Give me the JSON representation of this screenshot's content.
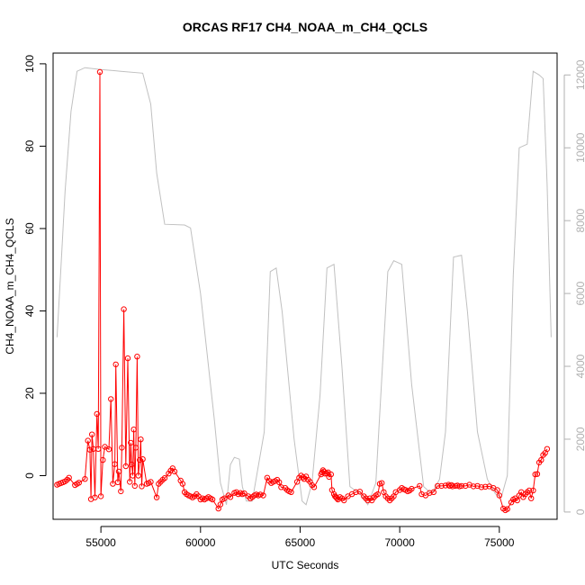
{
  "chart_data": {
    "type": "line",
    "title": "ORCAS RF17 CH4_NOAA_m_CH4_QCLS",
    "xlabel": "UTC Seconds",
    "ylabel": "CH4_NOAA_m_CH4_QCLS",
    "xlim": [
      52600,
      77900
    ],
    "ylim": [
      -10.6,
      102.6
    ],
    "ylim_right": [
      -200,
      12600
    ],
    "x_ticks": [
      55000,
      60000,
      65000,
      70000,
      75000
    ],
    "y_ticks": [
      0,
      20,
      40,
      60,
      80,
      100
    ],
    "y_ticks_right": [
      0,
      2000,
      4000,
      6000,
      8000,
      10000,
      12000
    ],
    "colors": {
      "primary": "#ff0000",
      "secondary": "#c0c0c0",
      "axis": "#000000",
      "right_axis": "#b0b0b0"
    },
    "grid": false,
    "series": [
      {
        "axis": "left",
        "style": "line-with-circles",
        "points": [
          [
            52800,
            -2.2
          ],
          [
            52900,
            -2.0
          ],
          [
            53000,
            -1.8
          ],
          [
            53100,
            -1.6
          ],
          [
            53200,
            -1.4
          ],
          [
            53300,
            -1.0
          ],
          [
            53400,
            -0.5
          ],
          [
            53700,
            -2.3
          ],
          [
            53800,
            -2.0
          ],
          [
            53900,
            -1.7
          ],
          [
            54200,
            -0.8
          ],
          [
            54350,
            8.5
          ],
          [
            54450,
            6.3
          ],
          [
            54500,
            -5.7
          ],
          [
            54550,
            10.0
          ],
          [
            54620,
            6.5
          ],
          [
            54700,
            -5.3
          ],
          [
            54800,
            15.0
          ],
          [
            54870,
            6.5
          ],
          [
            54950,
            98.0
          ],
          [
            55000,
            -5.0
          ],
          [
            55100,
            3.8
          ],
          [
            55200,
            7.0
          ],
          [
            55400,
            6.4
          ],
          [
            55500,
            18.6
          ],
          [
            55600,
            -2.0
          ],
          [
            55700,
            2.8
          ],
          [
            55750,
            27.0
          ],
          [
            55850,
            -1.6
          ],
          [
            55900,
            1.0
          ],
          [
            56000,
            -3.8
          ],
          [
            56050,
            6.8
          ],
          [
            56150,
            40.4
          ],
          [
            56250,
            2.3
          ],
          [
            56350,
            28.5
          ],
          [
            56450,
            -1.5
          ],
          [
            56500,
            8.0
          ],
          [
            56550,
            2.7
          ],
          [
            56600,
            0.0
          ],
          [
            56650,
            11.2
          ],
          [
            56700,
            -2.5
          ],
          [
            56750,
            6.8
          ],
          [
            56820,
            28.9
          ],
          [
            56880,
            0.0
          ],
          [
            56950,
            3.8
          ],
          [
            57000,
            8.8
          ],
          [
            57050,
            -2.6
          ],
          [
            57100,
            4.0
          ],
          [
            57300,
            -2.0
          ],
          [
            57400,
            -1.8
          ],
          [
            57500,
            -1.5
          ],
          [
            57800,
            -5.3
          ],
          [
            57900,
            -2.0
          ],
          [
            58000,
            -1.5
          ],
          [
            58100,
            -1.0
          ],
          [
            58200,
            -0.6
          ],
          [
            58400,
            0.5
          ],
          [
            58500,
            1.2
          ],
          [
            58600,
            1.8
          ],
          [
            58700,
            1.0
          ],
          [
            59000,
            -1.2
          ],
          [
            59100,
            -2.0
          ],
          [
            59200,
            -4.0
          ],
          [
            59300,
            -4.5
          ],
          [
            59400,
            -4.8
          ],
          [
            59500,
            -5.0
          ],
          [
            59600,
            -5.3
          ],
          [
            59700,
            -5.0
          ],
          [
            59800,
            -4.5
          ],
          [
            59900,
            -5.0
          ],
          [
            60000,
            -5.8
          ],
          [
            60100,
            -5.5
          ],
          [
            60200,
            -5.8
          ],
          [
            60300,
            -5.5
          ],
          [
            60400,
            -5.2
          ],
          [
            60500,
            -5.5
          ],
          [
            60600,
            -5.8
          ],
          [
            60900,
            -8.0
          ],
          [
            61000,
            -7.0
          ],
          [
            61100,
            -5.8
          ],
          [
            61200,
            -5.5
          ],
          [
            61400,
            -4.8
          ],
          [
            61500,
            -5.2
          ],
          [
            61700,
            -4.2
          ],
          [
            61800,
            -4.0
          ],
          [
            61900,
            -4.5
          ],
          [
            62000,
            -4.2
          ],
          [
            62100,
            -4.5
          ],
          [
            62200,
            -4.3
          ],
          [
            62400,
            -5.0
          ],
          [
            62500,
            -5.5
          ],
          [
            62600,
            -5.2
          ],
          [
            62700,
            -4.8
          ],
          [
            62800,
            -4.6
          ],
          [
            62900,
            -4.8
          ],
          [
            63000,
            -4.6
          ],
          [
            63150,
            -4.8
          ],
          [
            63350,
            -0.5
          ],
          [
            63450,
            -1.3
          ],
          [
            63550,
            -1.8
          ],
          [
            63650,
            -1.5
          ],
          [
            63750,
            -1.3
          ],
          [
            63850,
            -1.0
          ],
          [
            63950,
            -1.6
          ],
          [
            64050,
            -2.8
          ],
          [
            64250,
            -3.0
          ],
          [
            64350,
            -3.5
          ],
          [
            64450,
            -3.8
          ],
          [
            64550,
            -4.0
          ],
          [
            64850,
            -1.5
          ],
          [
            64950,
            -0.5
          ],
          [
            65050,
            0.0
          ],
          [
            65150,
            -0.4
          ],
          [
            65200,
            -0.8
          ],
          [
            65300,
            -0.2
          ],
          [
            65400,
            -1.0
          ],
          [
            65500,
            -1.5
          ],
          [
            65600,
            -2.3
          ],
          [
            65700,
            -2.8
          ],
          [
            66050,
            0.3
          ],
          [
            66100,
            0.8
          ],
          [
            66150,
            1.3
          ],
          [
            66200,
            1.0
          ],
          [
            66250,
            0.5
          ],
          [
            66350,
            0.5
          ],
          [
            66400,
            0.8
          ],
          [
            66450,
            -0.3
          ],
          [
            66550,
            0.3
          ],
          [
            66600,
            -3.5
          ],
          [
            66700,
            -4.5
          ],
          [
            66750,
            -5.0
          ],
          [
            66800,
            -5.2
          ],
          [
            66850,
            -5.5
          ],
          [
            66900,
            -5.8
          ],
          [
            67000,
            -5.2
          ],
          [
            67100,
            -5.5
          ],
          [
            67200,
            -6.0
          ],
          [
            67400,
            -5.0
          ],
          [
            67600,
            -4.5
          ],
          [
            67800,
            -4.0
          ],
          [
            68000,
            -3.9
          ],
          [
            68200,
            -5.0
          ],
          [
            68300,
            -5.5
          ],
          [
            68400,
            -6.0
          ],
          [
            68500,
            -5.5
          ],
          [
            68600,
            -6.0
          ],
          [
            68700,
            -5.3
          ],
          [
            68800,
            -4.8
          ],
          [
            68900,
            -4.5
          ],
          [
            69000,
            -2.0
          ],
          [
            69100,
            -1.8
          ],
          [
            69200,
            -4.0
          ],
          [
            69300,
            -5.0
          ],
          [
            69400,
            -5.5
          ],
          [
            69500,
            -6.0
          ],
          [
            69600,
            -5.5
          ],
          [
            69700,
            -5.0
          ],
          [
            69800,
            -4.0
          ],
          [
            70000,
            -3.5
          ],
          [
            70100,
            -3.0
          ],
          [
            70200,
            -3.3
          ],
          [
            70300,
            -3.5
          ],
          [
            70400,
            -3.8
          ],
          [
            70500,
            -3.6
          ],
          [
            70600,
            -3.2
          ],
          [
            71000,
            -2.5
          ],
          [
            71100,
            -4.5
          ],
          [
            71300,
            -4.8
          ],
          [
            71500,
            -4.2
          ],
          [
            71700,
            -4.0
          ],
          [
            71900,
            -2.5
          ],
          [
            72100,
            -2.5
          ],
          [
            72300,
            -2.4
          ],
          [
            72450,
            -2.2
          ],
          [
            72500,
            -2.5
          ],
          [
            72600,
            -2.3
          ],
          [
            72650,
            -2.6
          ],
          [
            72800,
            -2.5
          ],
          [
            72900,
            -2.4
          ],
          [
            73000,
            -2.6
          ],
          [
            73100,
            -2.5
          ],
          [
            73300,
            -2.5
          ],
          [
            73500,
            -2.2
          ],
          [
            73700,
            -2.6
          ],
          [
            73900,
            -2.5
          ],
          [
            74100,
            -2.8
          ],
          [
            74300,
            -2.7
          ],
          [
            74500,
            -2.6
          ],
          [
            74700,
            -3.0
          ],
          [
            74900,
            -3.5
          ],
          [
            75000,
            -4.8
          ],
          [
            75200,
            -8.0
          ],
          [
            75300,
            -8.4
          ],
          [
            75400,
            -8.1
          ],
          [
            75600,
            -6.5
          ],
          [
            75700,
            -5.8
          ],
          [
            75800,
            -5.5
          ],
          [
            75900,
            -6.0
          ],
          [
            76000,
            -4.8
          ],
          [
            76100,
            -4.0
          ],
          [
            76200,
            -5.2
          ],
          [
            76300,
            -4.5
          ],
          [
            76400,
            -4.0
          ],
          [
            76500,
            -3.6
          ],
          [
            76600,
            -5.5
          ],
          [
            76700,
            -3.6
          ],
          [
            76800,
            0.3
          ],
          [
            76900,
            0.4
          ],
          [
            77000,
            3.2
          ],
          [
            77100,
            3.8
          ],
          [
            77200,
            5.0
          ],
          [
            77300,
            5.5
          ],
          [
            77400,
            6.5
          ]
        ]
      },
      {
        "axis": "right",
        "style": "line",
        "points": [
          [
            52800,
            4800
          ],
          [
            53000,
            6800
          ],
          [
            53200,
            8800
          ],
          [
            53500,
            11000
          ],
          [
            53800,
            12100
          ],
          [
            54200,
            12200
          ],
          [
            55000,
            12150
          ],
          [
            56000,
            12100
          ],
          [
            57100,
            12050
          ],
          [
            57500,
            11200
          ],
          [
            57800,
            9300
          ],
          [
            58200,
            7900
          ],
          [
            59200,
            7880
          ],
          [
            59500,
            7800
          ],
          [
            60000,
            6000
          ],
          [
            60700,
            2500
          ],
          [
            61000,
            800
          ],
          [
            61300,
            200
          ],
          [
            61500,
            1300
          ],
          [
            61700,
            1500
          ],
          [
            61950,
            1450
          ],
          [
            62100,
            700
          ],
          [
            62300,
            300
          ],
          [
            62600,
            300
          ],
          [
            63200,
            2200
          ],
          [
            63500,
            6600
          ],
          [
            63800,
            6700
          ],
          [
            64100,
            5500
          ],
          [
            64700,
            2000
          ],
          [
            65100,
            300
          ],
          [
            65300,
            200
          ],
          [
            65600,
            800
          ],
          [
            66000,
            3200
          ],
          [
            66350,
            6700
          ],
          [
            66700,
            6800
          ],
          [
            67100,
            4000
          ],
          [
            67500,
            700
          ],
          [
            68000,
            500
          ],
          [
            68400,
            200
          ],
          [
            68800,
            800
          ],
          [
            69400,
            6600
          ],
          [
            69700,
            6900
          ],
          [
            70100,
            6800
          ],
          [
            70600,
            3500
          ],
          [
            71200,
            700
          ],
          [
            71600,
            500
          ],
          [
            72000,
            900
          ],
          [
            72300,
            2200
          ],
          [
            72700,
            7000
          ],
          [
            73100,
            7050
          ],
          [
            73400,
            5500
          ],
          [
            73900,
            2200
          ],
          [
            74400,
            900
          ],
          [
            74800,
            500
          ],
          [
            75100,
            400
          ],
          [
            75400,
            1000
          ],
          [
            75700,
            6500
          ],
          [
            76000,
            10000
          ],
          [
            76400,
            10100
          ],
          [
            76700,
            12100
          ],
          [
            77000,
            12000
          ],
          [
            77200,
            11900
          ],
          [
            77400,
            9000
          ],
          [
            77600,
            4800
          ]
        ]
      }
    ]
  }
}
